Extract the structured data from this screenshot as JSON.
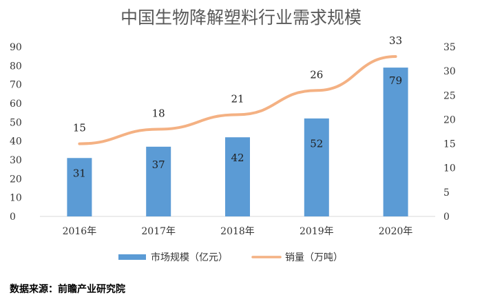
{
  "title": "中国生物降解塑料行业需求规模",
  "source": "数据来源：前瞻产业研究院",
  "colors": {
    "bar": "#5B9BD5",
    "line": "#F4B183"
  },
  "chart_data": {
    "type": "bar",
    "title": "中国生物降解塑料行业需求规模",
    "categories": [
      "2016年",
      "2017年",
      "2018年",
      "2019年",
      "2020年"
    ],
    "series": [
      {
        "name": "市场规模（亿元）",
        "type": "bar",
        "axis": "left",
        "values": [
          31,
          37,
          42,
          52,
          79
        ]
      },
      {
        "name": "销量（万吨）",
        "type": "line",
        "axis": "right",
        "values": [
          15,
          18,
          21,
          26,
          33
        ]
      }
    ],
    "ylim_left": [
      0,
      90
    ],
    "yticks_left": [
      "0",
      "10",
      "20",
      "30",
      "40",
      "50",
      "60",
      "70",
      "80",
      "90"
    ],
    "ylim_right": [
      0,
      35
    ],
    "yticks_right": [
      "0",
      "5",
      "10",
      "15",
      "20",
      "25",
      "30",
      "35"
    ],
    "grid": false,
    "legend_position": "bottom"
  }
}
